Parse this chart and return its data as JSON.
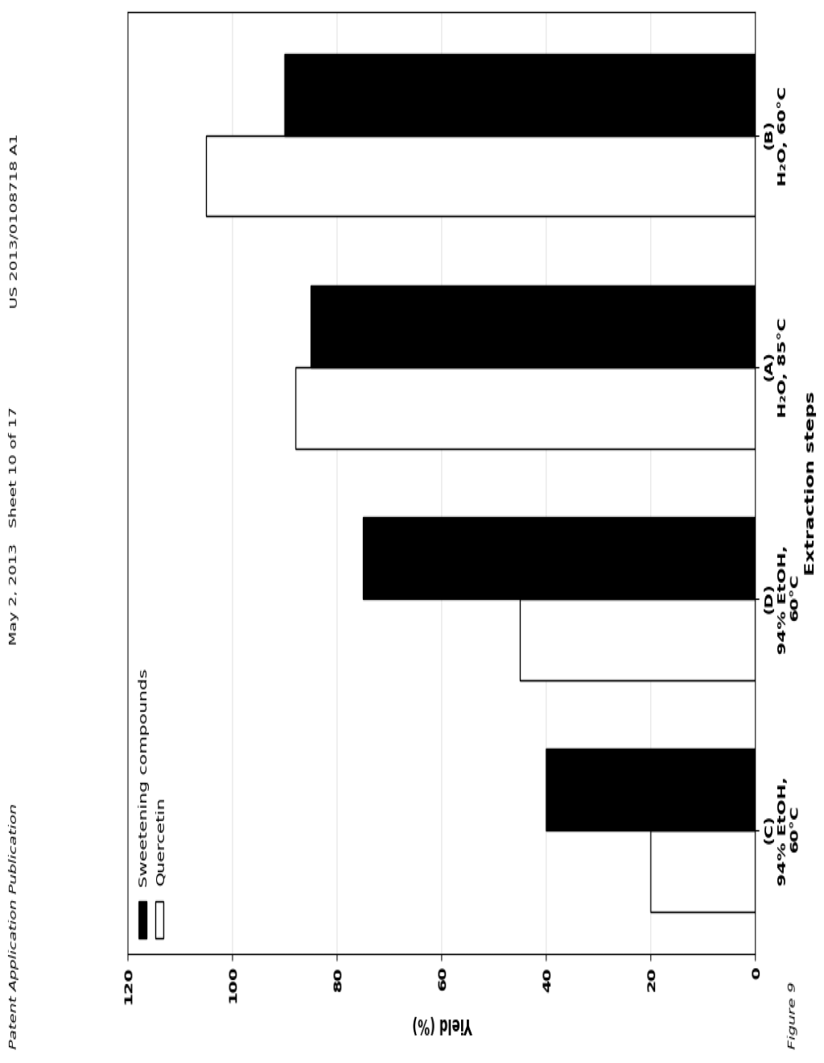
{
  "categories": [
    "(C)\n94% EtOH,\n60°C",
    "(D)\n94% EtOH,\n60°C",
    "(A)\nH₂O, 85°C",
    "(B)\nH₂O, 60°C"
  ],
  "sweetening_values": [
    40,
    75,
    85,
    90
  ],
  "quercetin_values": [
    20,
    45,
    88,
    105
  ],
  "ylabel": "Yield (%)",
  "xlabel": "Extraction steps",
  "legend_sweetening": "Sweetening compounds",
  "legend_quercetin": "Quercetin",
  "ylim": [
    0,
    120
  ],
  "yticks": [
    0,
    20,
    40,
    60,
    80,
    100,
    120
  ],
  "figure_label": "Figure 9",
  "header_line1": "Patent Application Publication",
  "header_line2": "May 2, 2013   Sheet 10 of 17",
  "header_line3": "US 2013/0108718 A1",
  "bar_width": 0.35,
  "sweetening_color": "#000000",
  "quercetin_color": "#ffffff",
  "background_color": "#ffffff",
  "title_fontsize": 11,
  "axis_fontsize": 11,
  "tick_fontsize": 10,
  "legend_fontsize": 10
}
